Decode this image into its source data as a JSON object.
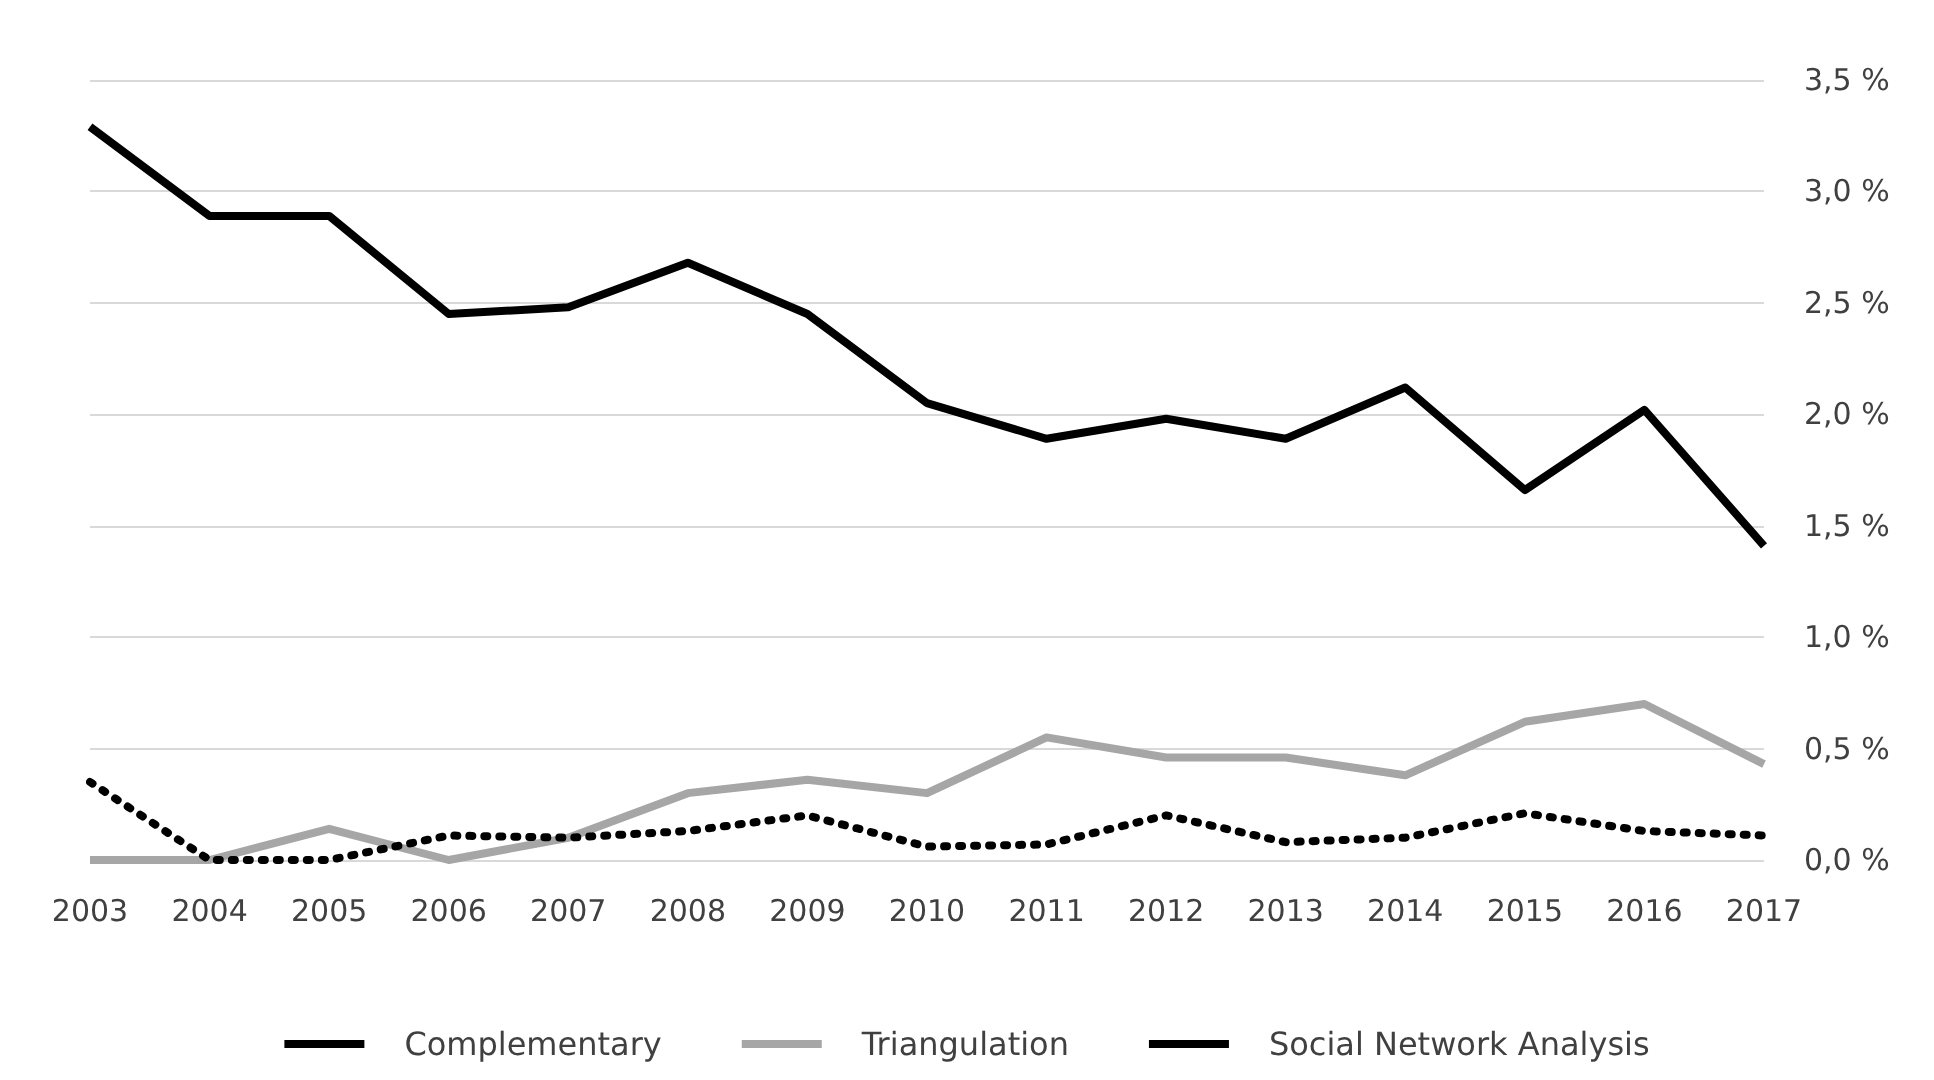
{
  "chart_data": {
    "type": "line",
    "categories": [
      "2003",
      "2004",
      "2005",
      "2006",
      "2007",
      "2008",
      "2009",
      "2010",
      "2011",
      "2012",
      "2013",
      "2014",
      "2015",
      "2016",
      "2017"
    ],
    "series": [
      {
        "name": "Complementary",
        "color": "#000000",
        "line_style": "solid",
        "values": [
          3.29,
          2.89,
          2.89,
          2.45,
          2.48,
          2.68,
          2.45,
          2.05,
          1.89,
          1.98,
          1.89,
          2.12,
          1.66,
          2.02,
          1.41
        ]
      },
      {
        "name": "Triangulation",
        "color": "#a6a6a6",
        "line_style": "solid",
        "values": [
          0,
          0,
          0.14,
          0,
          0.1,
          0.3,
          0.36,
          0.3,
          0.55,
          0.46,
          0.46,
          0.38,
          0.62,
          0.7,
          0.43
        ]
      },
      {
        "name": "Social Network Analysis",
        "color": "#000000",
        "line_style": "dotted",
        "values": [
          0.35,
          0,
          0,
          0.11,
          0.1,
          0.13,
          0.2,
          0.06,
          0.07,
          0.2,
          0.08,
          0.1,
          0.21,
          0.13,
          0.11
        ]
      }
    ],
    "ylim": [
      0,
      3.5
    ],
    "yticks": [
      {
        "value": 0,
        "label": "0,0 %"
      },
      {
        "value": 0.5,
        "label": "0,5 %"
      },
      {
        "value": 1,
        "label": "1,0 %"
      },
      {
        "value": 1.5,
        "label": "1,5 %"
      },
      {
        "value": 2,
        "label": "2,0 %"
      },
      {
        "value": 2.5,
        "label": "2,5 %"
      },
      {
        "value": 3,
        "label": "3,0 %"
      },
      {
        "value": 3.5,
        "label": "3,5 %"
      }
    ],
    "grid": "y",
    "legend": "bottom",
    "marker": "none"
  }
}
